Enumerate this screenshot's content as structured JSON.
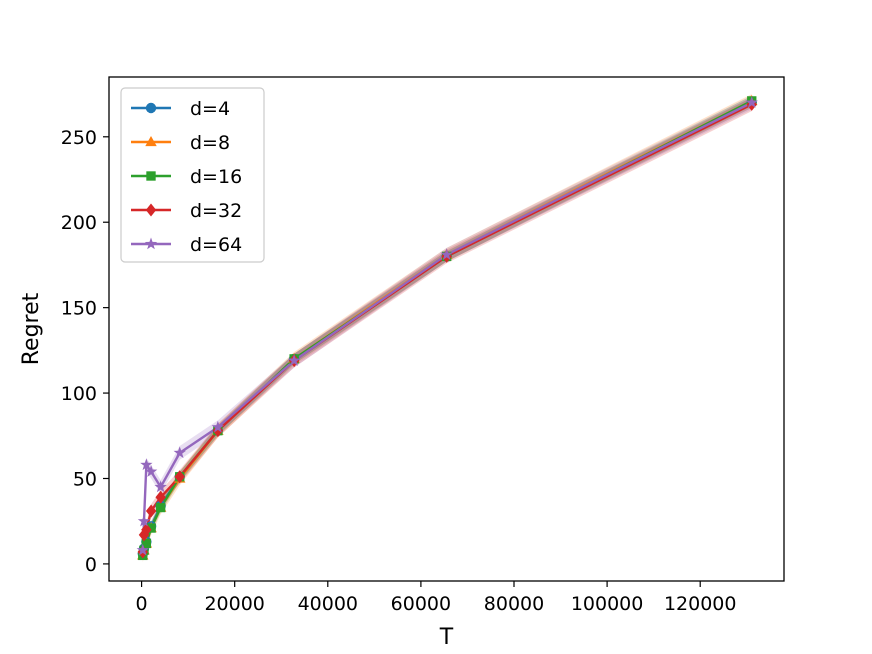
{
  "chart_data": {
    "type": "line",
    "title": "",
    "xlabel": "T",
    "ylabel": "Regret",
    "xlim": [
      -7000,
      138000
    ],
    "ylim": [
      -10,
      285
    ],
    "xticks": [
      0,
      20000,
      40000,
      60000,
      80000,
      100000,
      120000
    ],
    "yticks": [
      0,
      50,
      100,
      150,
      200,
      250
    ],
    "grid": false,
    "legend_position": "top-left",
    "x": [
      256,
      512,
      1024,
      2048,
      4096,
      8192,
      16384,
      32768,
      65536,
      131072
    ],
    "series": [
      {
        "name": "d=4",
        "color": "#1f77b4",
        "marker": "circle",
        "values": [
          6,
          9,
          13,
          22,
          34,
          51,
          78,
          120,
          180,
          270
        ],
        "band": 3
      },
      {
        "name": "d=8",
        "color": "#ff7f0e",
        "marker": "triangle",
        "values": [
          5,
          8,
          12,
          21,
          33,
          50,
          78,
          120,
          181,
          271
        ],
        "band": 4
      },
      {
        "name": "d=16",
        "color": "#2ca02c",
        "marker": "square",
        "values": [
          5,
          8,
          12,
          21,
          33,
          51,
          78,
          120,
          180,
          271
        ],
        "band": 3
      },
      {
        "name": "d=32",
        "color": "#d62728",
        "marker": "diamond",
        "values": [
          7,
          17,
          20,
          31,
          39,
          51,
          78,
          119,
          180,
          269
        ],
        "band": 4
      },
      {
        "name": "d=64",
        "color": "#9467bd",
        "marker": "star",
        "values": [
          8,
          25,
          58,
          54,
          45,
          65,
          80,
          119,
          181,
          270
        ],
        "band": 4
      }
    ]
  }
}
